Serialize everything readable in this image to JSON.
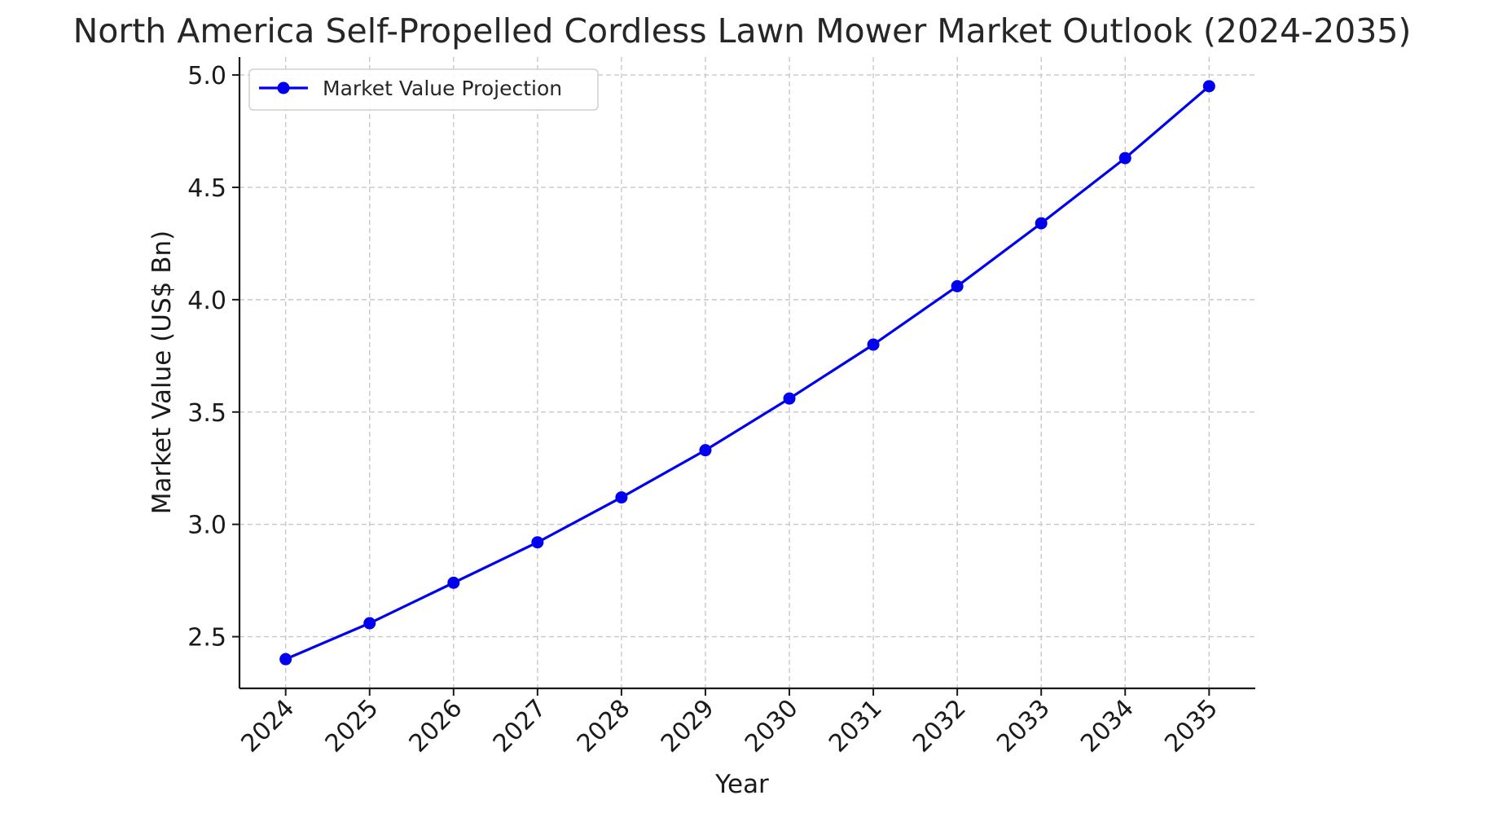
{
  "chart_data": {
    "type": "line",
    "title": "North America Self-Propelled Cordless Lawn Mower Market Outlook (2024-2035)",
    "xlabel": "Year",
    "ylabel": "Market Value (US$ Bn)",
    "x": [
      2024,
      2025,
      2026,
      2027,
      2028,
      2029,
      2030,
      2031,
      2032,
      2033,
      2034,
      2035
    ],
    "series": [
      {
        "name": "Market Value Projection",
        "values": [
          2.4,
          2.56,
          2.74,
          2.92,
          3.12,
          3.33,
          3.56,
          3.8,
          4.06,
          4.34,
          4.63,
          4.95
        ],
        "color": "#0000ee",
        "marker": "circle"
      }
    ],
    "yticks": [
      2.5,
      3.0,
      3.5,
      4.0,
      4.5,
      5.0
    ],
    "ytick_labels": [
      "2.5",
      "3.0",
      "3.5",
      "4.0",
      "4.5",
      "5.0"
    ],
    "xtick_labels": [
      "2024",
      "2025",
      "2026",
      "2027",
      "2028",
      "2029",
      "2030",
      "2031",
      "2032",
      "2033",
      "2034",
      "2035"
    ],
    "ylim": [
      2.27,
      5.08
    ],
    "xlim": [
      2023.45,
      2035.55
    ],
    "grid": true,
    "legend_position": "top-left",
    "xtick_rotation": -45
  }
}
